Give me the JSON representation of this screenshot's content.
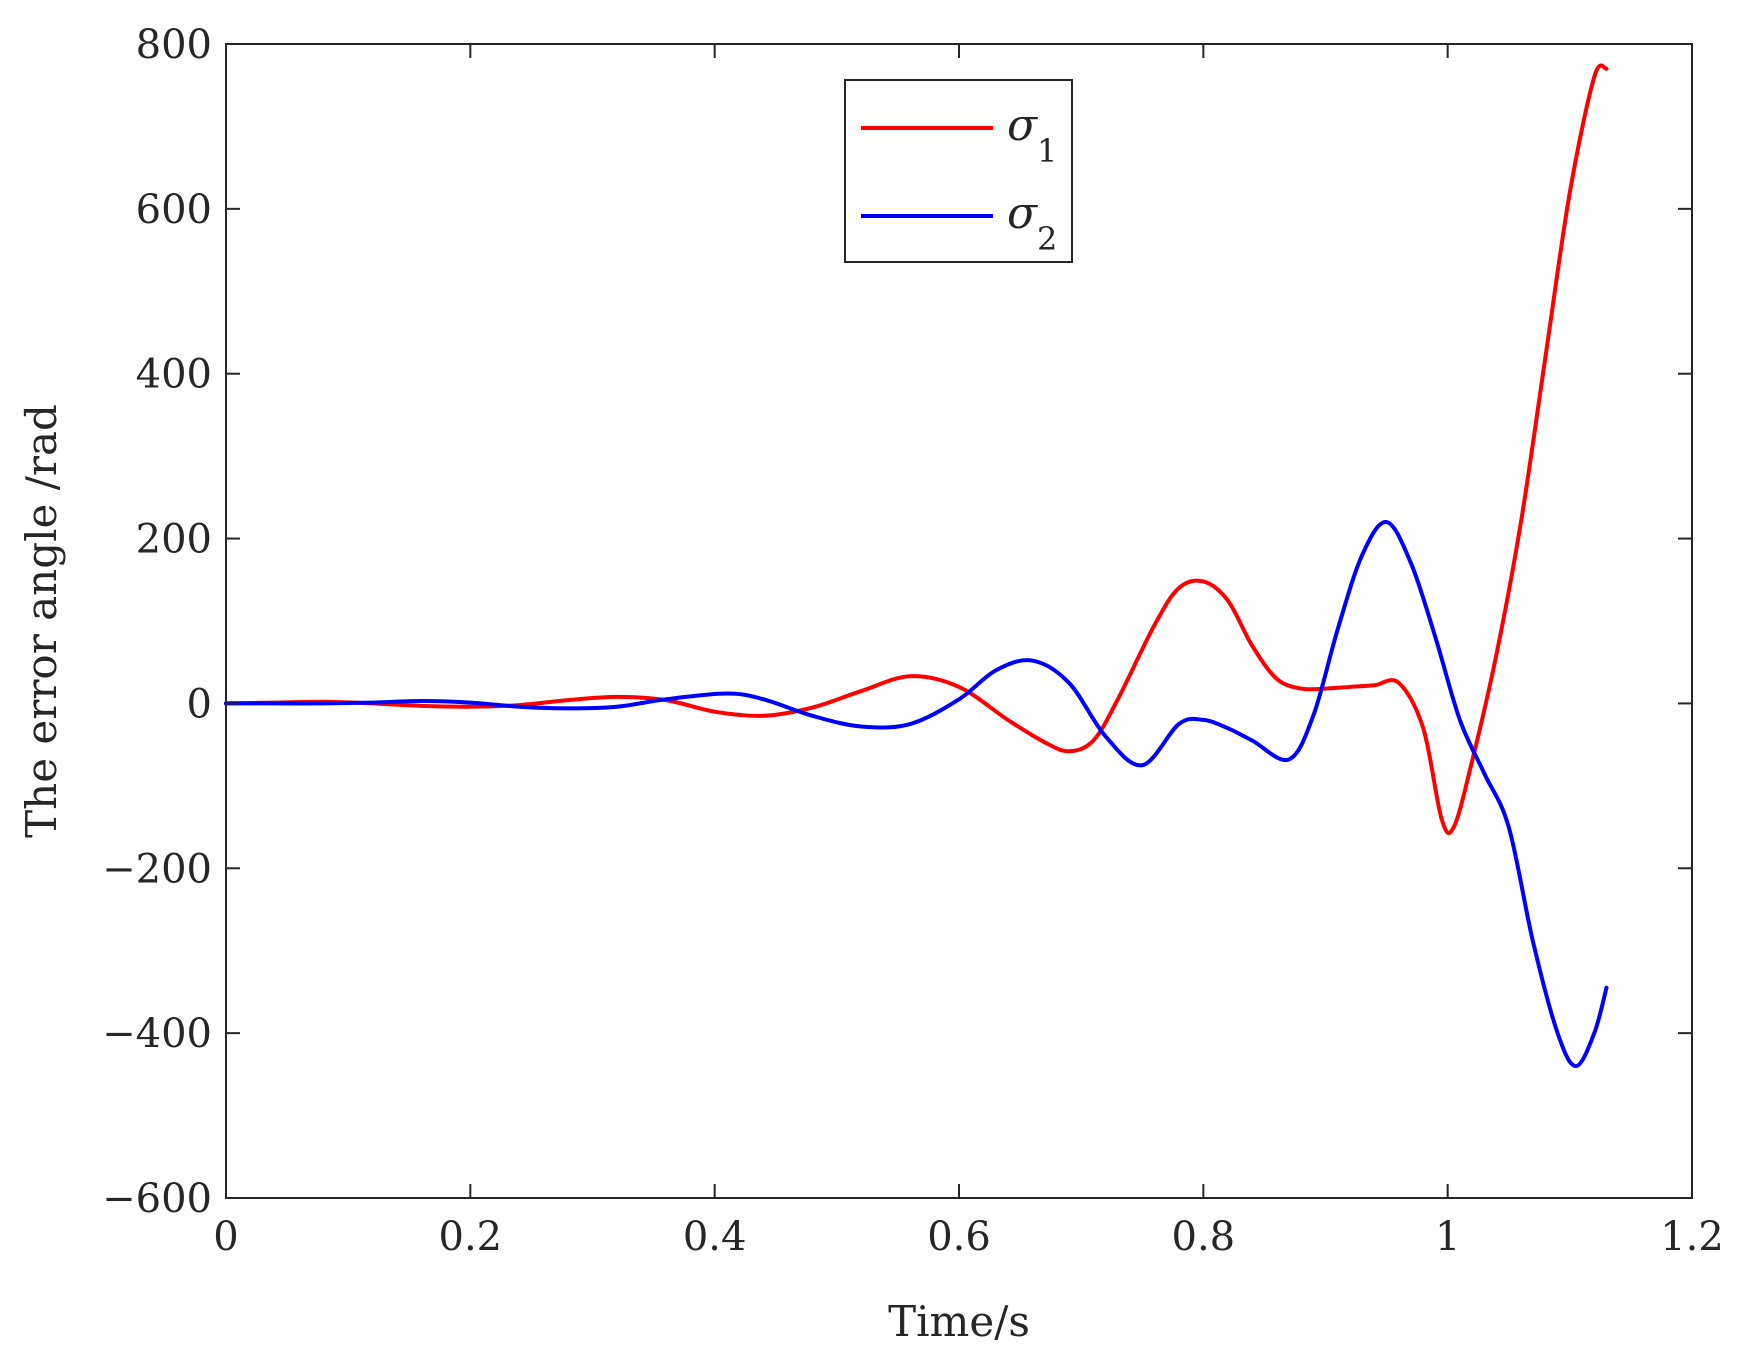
{
  "chart_data": {
    "type": "line",
    "xlabel": "Time/s",
    "ylabel": "The error angle /rad",
    "xlim": [
      0,
      1.2
    ],
    "ylim": [
      -600,
      800
    ],
    "xticks": [
      0,
      0.2,
      0.4,
      0.6,
      0.8,
      1,
      1.2
    ],
    "yticks": [
      -600,
      -400,
      -200,
      0,
      200,
      400,
      600,
      800
    ],
    "xtick_labels": [
      "0",
      "0.2",
      "0.4",
      "0.6",
      "0.8",
      "1",
      "1.2"
    ],
    "ytick_labels": [
      "−600",
      "−400",
      "−200",
      "0",
      "200",
      "400",
      "600",
      "800"
    ],
    "grid": false,
    "legend_position": "top-center",
    "series": [
      {
        "name": "σ",
        "subscript": "1",
        "color": "#ff0000",
        "x": [
          0,
          0.04,
          0.08,
          0.12,
          0.16,
          0.2,
          0.24,
          0.28,
          0.32,
          0.36,
          0.4,
          0.44,
          0.48,
          0.52,
          0.56,
          0.6,
          0.64,
          0.67,
          0.69,
          0.71,
          0.73,
          0.76,
          0.78,
          0.8,
          0.82,
          0.84,
          0.86,
          0.88,
          0.9,
          0.92,
          0.94,
          0.96,
          0.98,
          0.995,
          1.005,
          1.02,
          1.04,
          1.06,
          1.08,
          1.1,
          1.12,
          1.13
        ],
        "y": [
          0,
          1,
          2,
          0,
          -3,
          -4,
          -2,
          4,
          8,
          4,
          -10,
          -15,
          -5,
          15,
          33,
          20,
          -20,
          -47,
          -58,
          -45,
          5,
          95,
          140,
          148,
          125,
          70,
          30,
          18,
          18,
          20,
          22,
          25,
          -30,
          -140,
          -150,
          -70,
          60,
          220,
          420,
          620,
          760,
          770
        ]
      },
      {
        "name": "σ",
        "subscript": "2",
        "color": "#0000ff",
        "x": [
          0,
          0.04,
          0.08,
          0.12,
          0.16,
          0.2,
          0.24,
          0.28,
          0.32,
          0.36,
          0.41,
          0.44,
          0.48,
          0.52,
          0.56,
          0.6,
          0.63,
          0.66,
          0.69,
          0.72,
          0.75,
          0.78,
          0.8,
          0.82,
          0.84,
          0.87,
          0.89,
          0.91,
          0.93,
          0.95,
          0.97,
          0.99,
          1.01,
          1.03,
          1.05,
          1.07,
          1.09,
          1.105,
          1.12,
          1.13
        ],
        "y": [
          0,
          0,
          0,
          1,
          3,
          1,
          -4,
          -6,
          -4,
          5,
          12,
          5,
          -15,
          -28,
          -25,
          5,
          40,
          52,
          25,
          -40,
          -75,
          -25,
          -20,
          -30,
          -45,
          -68,
          -15,
          90,
          180,
          220,
          170,
          80,
          -20,
          -85,
          -150,
          -290,
          -400,
          -440,
          -400,
          -345
        ]
      }
    ]
  }
}
